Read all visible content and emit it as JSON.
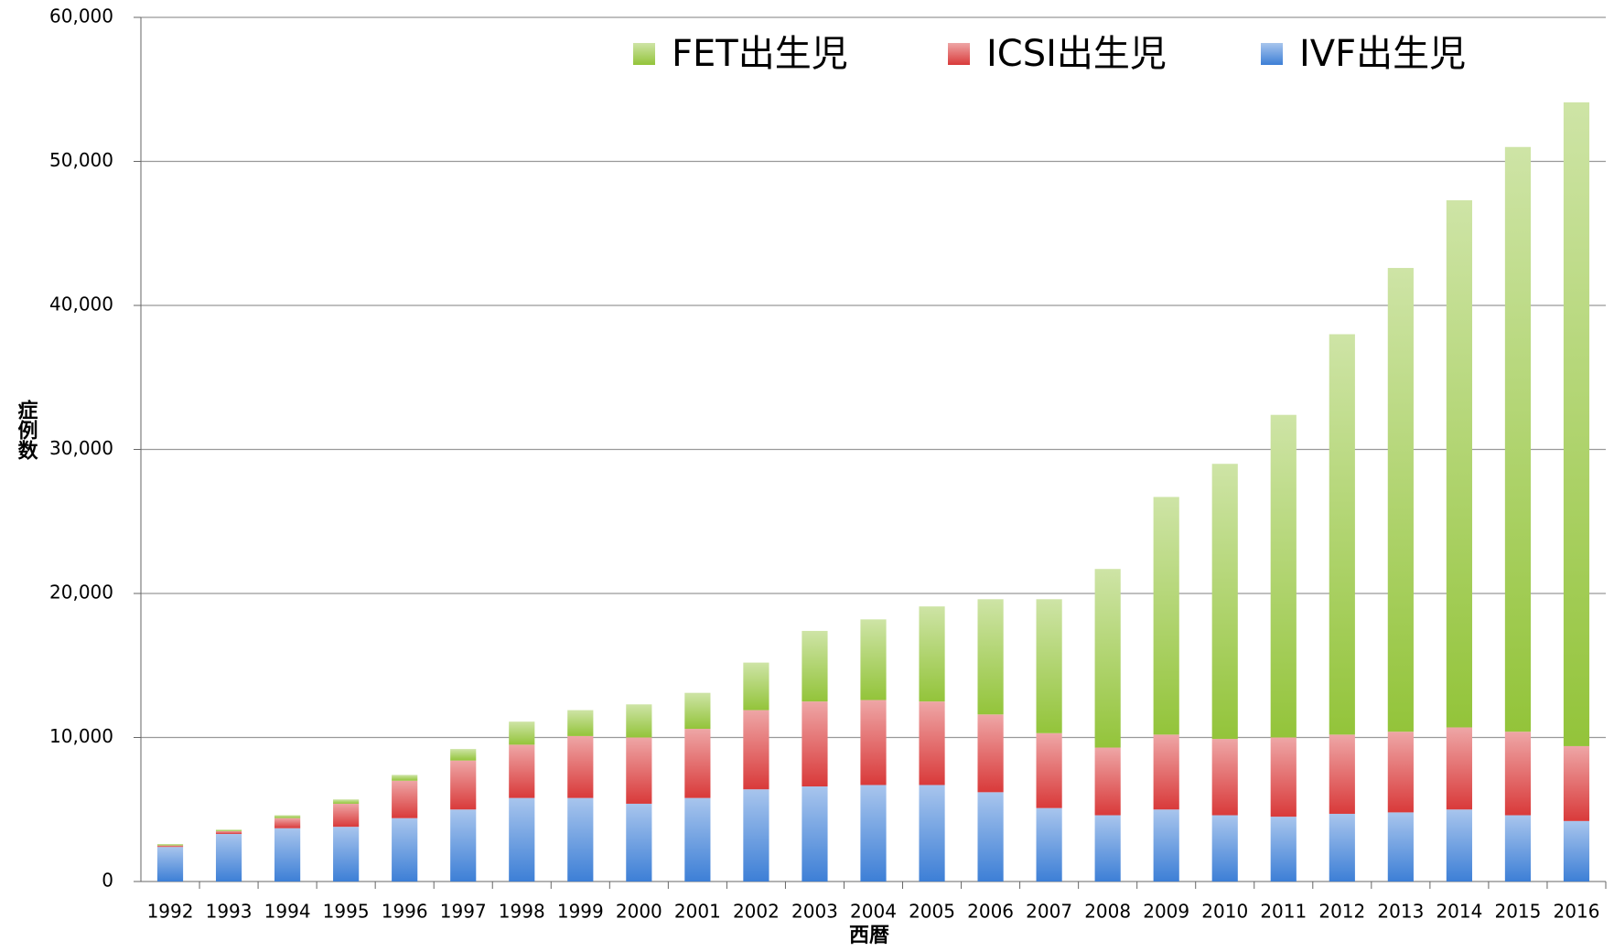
{
  "chart_data": {
    "type": "stacked_bar",
    "x_label": "西暦",
    "y_label": "症例数",
    "categories": [
      "1992",
      "1993",
      "1994",
      "1995",
      "1996",
      "1997",
      "1998",
      "1999",
      "2000",
      "2001",
      "2002",
      "2003",
      "2004",
      "2005",
      "2006",
      "2007",
      "2008",
      "2009",
      "2010",
      "2011",
      "2012",
      "2013",
      "2014",
      "2015",
      "2016"
    ],
    "series": [
      {
        "name": "IVF出生児",
        "color": "#3d7fd6",
        "values": [
          2400,
          3300,
          3700,
          3800,
          4400,
          5000,
          5800,
          5800,
          5400,
          5800,
          6400,
          6600,
          6700,
          6700,
          6200,
          5100,
          4600,
          5000,
          4600,
          4500,
          4700,
          4800,
          5000,
          4600,
          4200
        ]
      },
      {
        "name": "ICSI出生児",
        "color": "#d93a3a",
        "values": [
          100,
          200,
          700,
          1600,
          2600,
          3400,
          3700,
          4300,
          4600,
          4800,
          5500,
          5900,
          5900,
          5800,
          5400,
          5200,
          4700,
          5200,
          5300,
          5500,
          5500,
          5600,
          5700,
          5800,
          5200
        ]
      },
      {
        "name": "FET出生児",
        "color": "#93c43a",
        "values": [
          100,
          100,
          200,
          300,
          400,
          800,
          1600,
          1800,
          2300,
          2500,
          3300,
          4900,
          5600,
          6600,
          8000,
          9300,
          12400,
          16500,
          19100,
          22400,
          27800,
          32200,
          36600,
          40600,
          44700
        ]
      }
    ],
    "ylim": [
      0,
      60000
    ],
    "yticks": [
      0,
      {
        "value": 10000,
        "label": "10,000"
      },
      {
        "value": 20000,
        "label": "20,000"
      },
      {
        "value": 30000,
        "label": "30,000"
      },
      {
        "value": 40000,
        "label": "40,000"
      },
      {
        "value": 50000,
        "label": "50,000"
      },
      {
        "value": 60000,
        "label": "60,000"
      }
    ],
    "grid": true,
    "legend": "top-right"
  }
}
